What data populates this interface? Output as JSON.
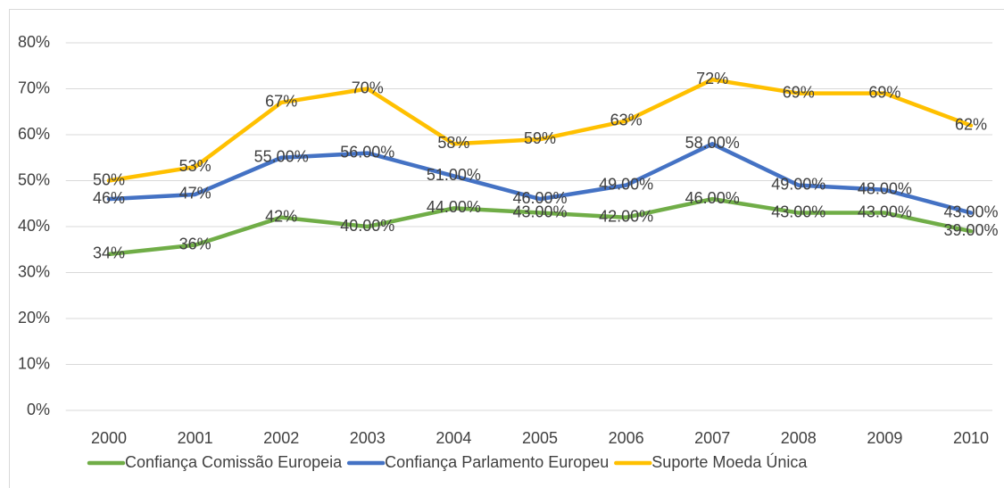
{
  "chart_data": {
    "type": "line",
    "categories": [
      "2000",
      "2001",
      "2002",
      "2003",
      "2004",
      "2005",
      "2006",
      "2007",
      "2008",
      "2009",
      "2010"
    ],
    "series": [
      {
        "name": "Confiança Comissão Europeia",
        "color": "#70ad47",
        "values": [
          34,
          36,
          42,
          40,
          44,
          43,
          42,
          46,
          43,
          43,
          39
        ],
        "value_labels": [
          "34%",
          "36%",
          "42%",
          "40.00%",
          "44.00%",
          "43.00%",
          "42.00%",
          "46.00%",
          "43.00%",
          "43.00%",
          "39.00%"
        ]
      },
      {
        "name": "Confiança Parlamento Europeu",
        "color": "#4472c4",
        "values": [
          46,
          47,
          55,
          56,
          51,
          46,
          49,
          58,
          49,
          48,
          43
        ],
        "value_labels": [
          "46%",
          "47%",
          "55.00%",
          "56.00%",
          "51.00%",
          "46.00%",
          "49.00%",
          "58.00%",
          "49.00%",
          "48.00%",
          "43.00%"
        ]
      },
      {
        "name": "Suporte Moeda Única",
        "color": "#ffc000",
        "values": [
          50,
          53,
          67,
          70,
          58,
          59,
          63,
          72,
          69,
          69,
          62
        ],
        "value_labels": [
          "50%",
          "53%",
          "67%",
          "70%",
          "58%",
          "59%",
          "63%",
          "72%",
          "69%",
          "69%",
          "62%"
        ]
      }
    ],
    "ylim": [
      0,
      80
    ],
    "yticks": [
      {
        "value": 0,
        "label": "0%"
      },
      {
        "value": 10,
        "label": "10%"
      },
      {
        "value": 20,
        "label": "20%"
      },
      {
        "value": 30,
        "label": "30%"
      },
      {
        "value": 40,
        "label": "40%"
      },
      {
        "value": 50,
        "label": "50%"
      },
      {
        "value": 60,
        "label": "60%"
      },
      {
        "value": 70,
        "label": "70%"
      },
      {
        "value": 80,
        "label": "80%"
      }
    ],
    "grid": true,
    "legend": "bottom"
  }
}
